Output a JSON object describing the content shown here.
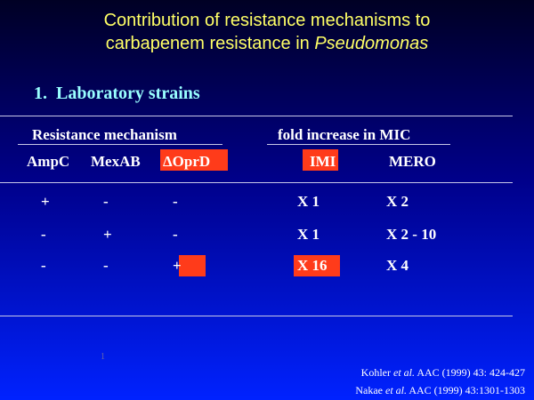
{
  "title": {
    "line1": "Contribution of resistance mechanisms to",
    "line2": [
      "carbapenem resistance in ",
      "Pseudomonas"
    ]
  },
  "subtitle": "1.  Laboratory strains",
  "table": {
    "group_headers": [
      "Resistance mechanism",
      "fold increase in MIC"
    ],
    "columns": [
      "AmpC",
      "MexAB",
      "ΔOprD",
      "IMI",
      "MERO"
    ],
    "rows": [
      [
        "+",
        "-",
        "-",
        "X 1",
        "X 2"
      ],
      [
        "-",
        "+",
        "-",
        "X 1",
        "X 2 - 10"
      ],
      [
        "-",
        "-",
        "+",
        "X 16",
        "X 4"
      ]
    ]
  },
  "slide_number": "1",
  "references": [
    [
      "Kohler ",
      "et al.",
      " AAC (1999) 43: 424-427"
    ],
    [
      "Nakae ",
      "et al.",
      " AAC (1999) 43:1301-1303"
    ]
  ]
}
